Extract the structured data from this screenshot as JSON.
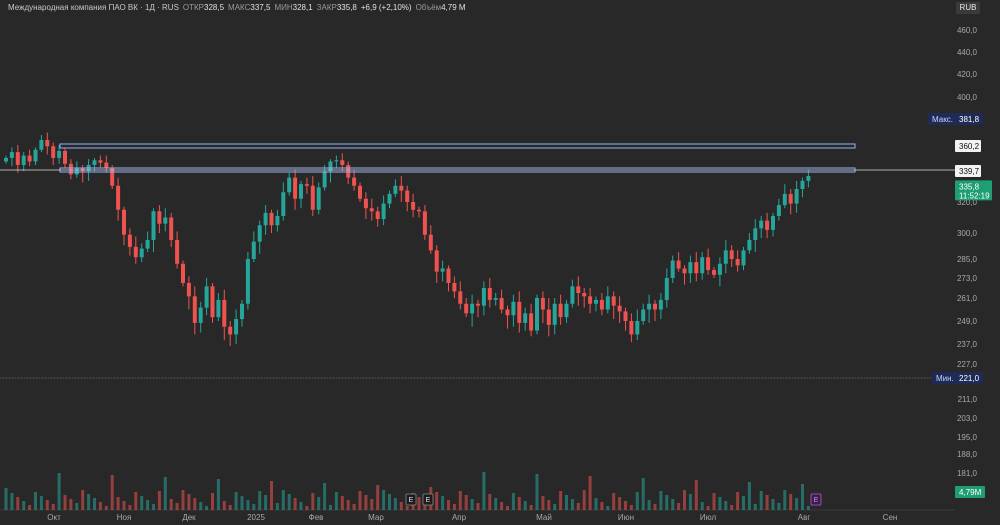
{
  "instrument": {
    "name": "Международная компания ПАО ВК · 1Д · RUS",
    "open_label": "ОТКР",
    "open": "328,5",
    "high_label": "МАКС",
    "high": "337,5",
    "low_label": "МИН",
    "low": "328,1",
    "close_label": "ЗАКР",
    "close": "335,8",
    "change": "+6,9 (+2,10%)",
    "volume_label": "Объём",
    "volume": "4,79 M"
  },
  "currency": "RUB",
  "chart_data": {
    "type": "candlestick",
    "x_labels": [
      "Окт",
      "Ноя",
      "Дек",
      "2025",
      "Фев",
      "Мар",
      "Апр",
      "Май",
      "Июн",
      "Июл",
      "Авг",
      "Сен"
    ],
    "y_tick_labels": [
      "460,0",
      "440,0",
      "420,0",
      "400,0",
      "381,8",
      "360,2",
      "339,7",
      "320,0",
      "300,0",
      "285,0",
      "273,0",
      "261,0",
      "249,0",
      "237,0",
      "227,0",
      "221,0",
      "211,0",
      "203,0",
      "195,0",
      "188,0",
      "181,0"
    ],
    "y_ticks": [
      {
        "label": "460,0",
        "value": 460
      },
      {
        "label": "440,0",
        "value": 440
      },
      {
        "label": "420,0",
        "value": 420
      },
      {
        "label": "400,0",
        "value": 400
      },
      {
        "label": "320,0",
        "value": 320
      },
      {
        "label": "300,0",
        "value": 300
      },
      {
        "label": "285,0",
        "value": 285
      },
      {
        "label": "273,0",
        "value": 273
      },
      {
        "label": "261,0",
        "value": 261
      },
      {
        "label": "249,0",
        "value": 249
      },
      {
        "label": "237,0",
        "value": 237
      },
      {
        "label": "227,0",
        "value": 227
      },
      {
        "label": "211,0",
        "value": 211
      },
      {
        "label": "203,0",
        "value": 203
      },
      {
        "label": "195,0",
        "value": 195
      },
      {
        "label": "188,0",
        "value": 188
      },
      {
        "label": "181,0",
        "value": 181
      }
    ],
    "price_tags": {
      "max": {
        "label": "Макс.",
        "value_text": "381,8",
        "value": 381.8
      },
      "level_high": {
        "value_text": "360,2",
        "value": 360.2
      },
      "level_low": {
        "value_text": "339,7",
        "value": 339.7
      },
      "last": {
        "value_text": "335,8",
        "time": "11:52:19",
        "value": 335.8
      },
      "min": {
        "label": "Мин.",
        "value_text": "221,0",
        "value": 221.0
      },
      "volume": {
        "value_text": "4,79M"
      }
    },
    "horizontal_levels": [
      360.2,
      339.7
    ],
    "earnings_markers": [
      "E",
      "E",
      "E"
    ],
    "up_color": "#26a69a",
    "down_color": "#ef5350",
    "grid": false,
    "close_series": [
      350,
      355,
      344,
      352,
      347,
      357,
      365,
      360,
      350,
      356,
      345,
      337,
      341,
      339,
      344,
      348,
      346,
      341,
      330,
      315,
      299,
      292,
      286,
      291,
      296,
      314,
      306,
      310,
      296,
      282,
      270,
      262,
      248,
      256,
      268,
      251,
      260,
      246,
      242,
      250,
      258,
      285,
      295,
      305,
      313,
      305,
      311,
      326,
      335,
      322,
      331,
      330,
      315,
      329,
      339,
      347,
      348,
      344,
      335,
      330,
      322,
      316,
      314,
      309,
      319,
      325,
      330,
      327,
      320,
      315,
      314,
      299,
      290,
      277,
      279,
      270,
      265,
      258,
      253,
      258,
      257,
      267,
      260,
      261,
      255,
      252,
      259,
      248,
      253,
      244,
      261,
      255,
      247,
      258,
      251,
      258,
      268,
      264,
      262,
      258,
      260,
      255,
      262,
      257,
      254,
      249,
      242,
      249,
      255,
      258,
      255,
      260,
      273,
      284,
      279,
      276,
      283,
      276,
      286,
      278,
      275,
      282,
      290,
      285,
      281,
      290,
      296,
      303,
      308,
      302,
      311,
      318,
      325,
      319,
      328,
      333,
      336
    ]
  }
}
